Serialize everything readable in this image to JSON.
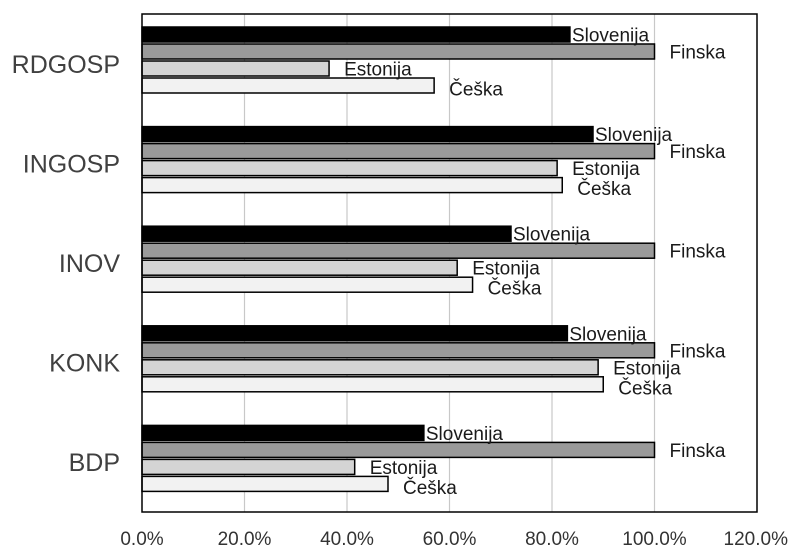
{
  "chart_data": {
    "type": "bar",
    "orientation": "horizontal",
    "categories": [
      "RDGOSP",
      "INGOSP",
      "INOV",
      "KONK",
      "BDP"
    ],
    "series": [
      {
        "name": "Slovenija",
        "color": "#000000",
        "values": [
          83.5,
          88.0,
          72.0,
          83.0,
          55.0
        ]
      },
      {
        "name": "Finska",
        "color": "#9a9a9a",
        "values": [
          100.0,
          100.0,
          100.0,
          100.0,
          100.0
        ]
      },
      {
        "name": "Estonija",
        "color": "#d4d4d4",
        "values": [
          36.5,
          81.0,
          61.5,
          89.0,
          41.5
        ]
      },
      {
        "name": "Češka",
        "color": "#f2f2f2",
        "values": [
          57.0,
          82.0,
          64.5,
          90.0,
          48.0
        ]
      }
    ],
    "x_ticks": [
      "0.0%",
      "20.0%",
      "40.0%",
      "60.0%",
      "80.0%",
      "100.0%",
      "120.0%"
    ],
    "xlim": [
      0,
      120
    ],
    "title": "",
    "xlabel": "",
    "ylabel": "",
    "grid": "vertical",
    "legend": "none (data labels show series names)",
    "data_labels": "series name next to each bar"
  }
}
